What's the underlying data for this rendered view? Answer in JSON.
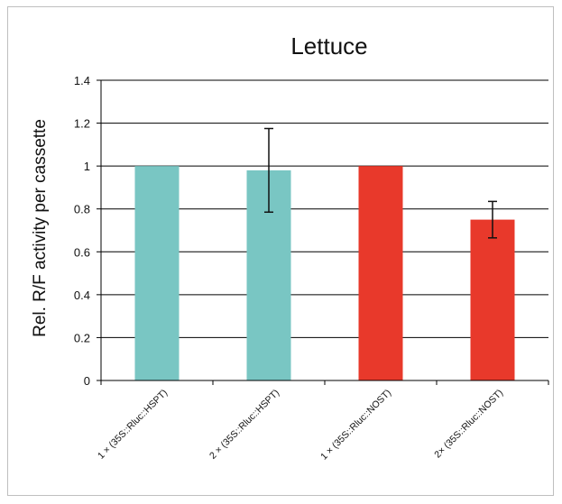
{
  "chart_data": {
    "type": "bar",
    "title": "Lettuce",
    "xlabel": "",
    "ylabel": "Rel. R/F activity per cassette",
    "ylim": [
      0,
      1.4
    ],
    "yticks": [
      "0",
      "0.2",
      "0.4",
      "0.6",
      "0.8",
      "1",
      "1.2",
      "1.4"
    ],
    "grid": true,
    "categories": [
      "1 × (35S::Rluc::HSPT)",
      "2 × (35S::Rluc::HSPT)",
      "1 × (35S::Rluc::NOST)",
      "2× (35S::Rluc::NOST)"
    ],
    "values": [
      1.0,
      0.98,
      1.0,
      0.75
    ],
    "errors": [
      null,
      0.195,
      null,
      0.085
    ],
    "bar_colors": [
      "#79c6c3",
      "#79c6c3",
      "#e8392b",
      "#e8392b"
    ]
  }
}
